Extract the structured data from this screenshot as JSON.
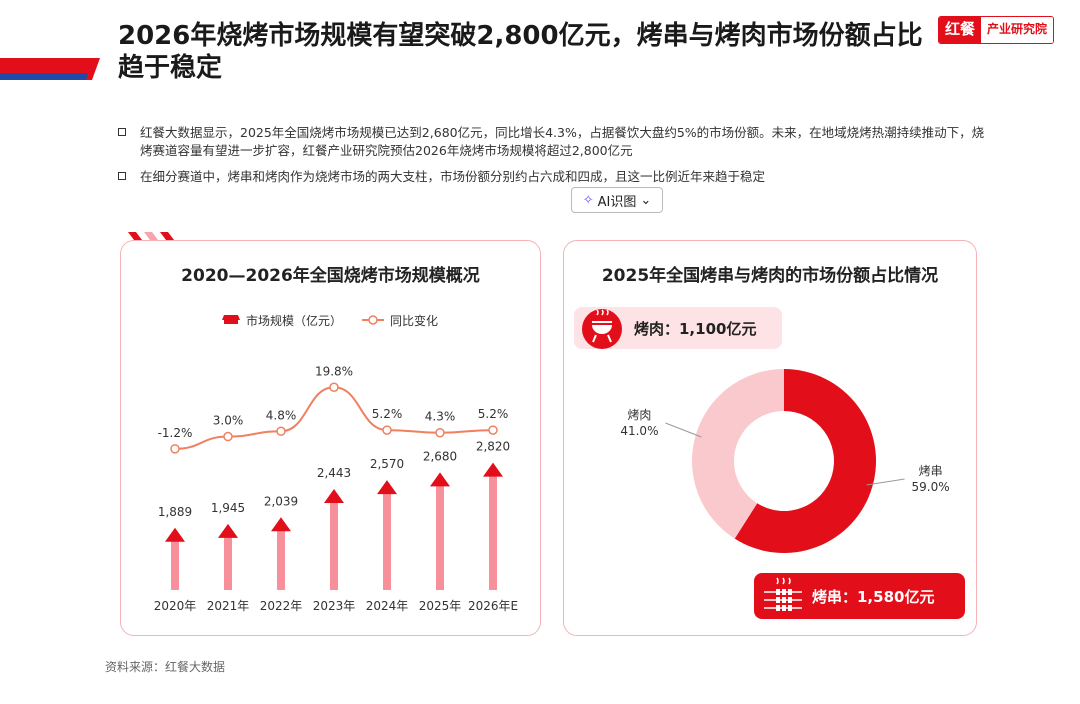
{
  "header": {
    "title": "2026年烧烤市场规模有望突破2,800亿元，烤串与烤肉市场份额占比趋于稳定",
    "brand_mark": "红餐",
    "brand_name": "产业研究院"
  },
  "bullets": [
    "红餐大数据显示，2025年全国烧烤市场规模已达到2,680亿元，同比增长4.3%，占据餐饮大盘约5%的市场份额。未来，在地域烧烤热潮持续推动下，烧烤赛道容量有望进一步扩容，红餐产业研究院预估2026年烧烤市场规模将超过2,800亿元",
    "在细分赛道中，烤串和烤肉作为烧烤市场的两大支柱，市场份额分别约占六成和四成，且这一比例近年来趋于稳定"
  ],
  "ai_button": {
    "icon": "✧",
    "label": "AI识图",
    "caret": "⌄"
  },
  "source": "资料来源：红餐大数据",
  "watermark": "红餐 产业研究院",
  "colors": {
    "brand_red": "#e20f1a",
    "line_orange": "#f08060",
    "light_pink": "#f9c9cd",
    "bar_pink": "#f7909a"
  },
  "chart_data": [
    {
      "type": "bar",
      "title": "2020—2026年全国烧烤市场规模概况",
      "categories": [
        "2020年",
        "2021年",
        "2022年",
        "2023年",
        "2024年",
        "2025年",
        "2026年E"
      ],
      "series": [
        {
          "name": "市场规模（亿元）",
          "type": "bar",
          "values": [
            1889,
            1945,
            2039,
            2443,
            2570,
            2680,
            2820
          ],
          "labels": [
            "1,889",
            "1,945",
            "2,039",
            "2,443",
            "2,570",
            "2,680",
            "2,820"
          ]
        },
        {
          "name": "同比变化",
          "type": "line",
          "values": [
            -1.2,
            3.0,
            4.8,
            19.8,
            5.2,
            4.3,
            5.2
          ],
          "labels": [
            "-1.2%",
            "3.0%",
            "4.8%",
            "19.8%",
            "5.2%",
            "4.3%",
            "5.2%"
          ]
        }
      ],
      "ylim": [
        0,
        3000
      ],
      "line_ylim": [
        -5,
        25
      ],
      "grid": false,
      "legend": "top"
    },
    {
      "type": "pie",
      "title": "2025年全国烤串与烤肉的市场份额占比情况",
      "slices": [
        {
          "name": "烤串",
          "value": 59.0,
          "label": "59.0%",
          "color": "#e20f1a"
        },
        {
          "name": "烤肉",
          "value": 41.0,
          "label": "41.0%",
          "color": "#f9c9cd"
        }
      ],
      "callouts": {
        "meat": "烤肉：1,100亿元",
        "skewer": "烤串：1,580亿元"
      }
    }
  ]
}
